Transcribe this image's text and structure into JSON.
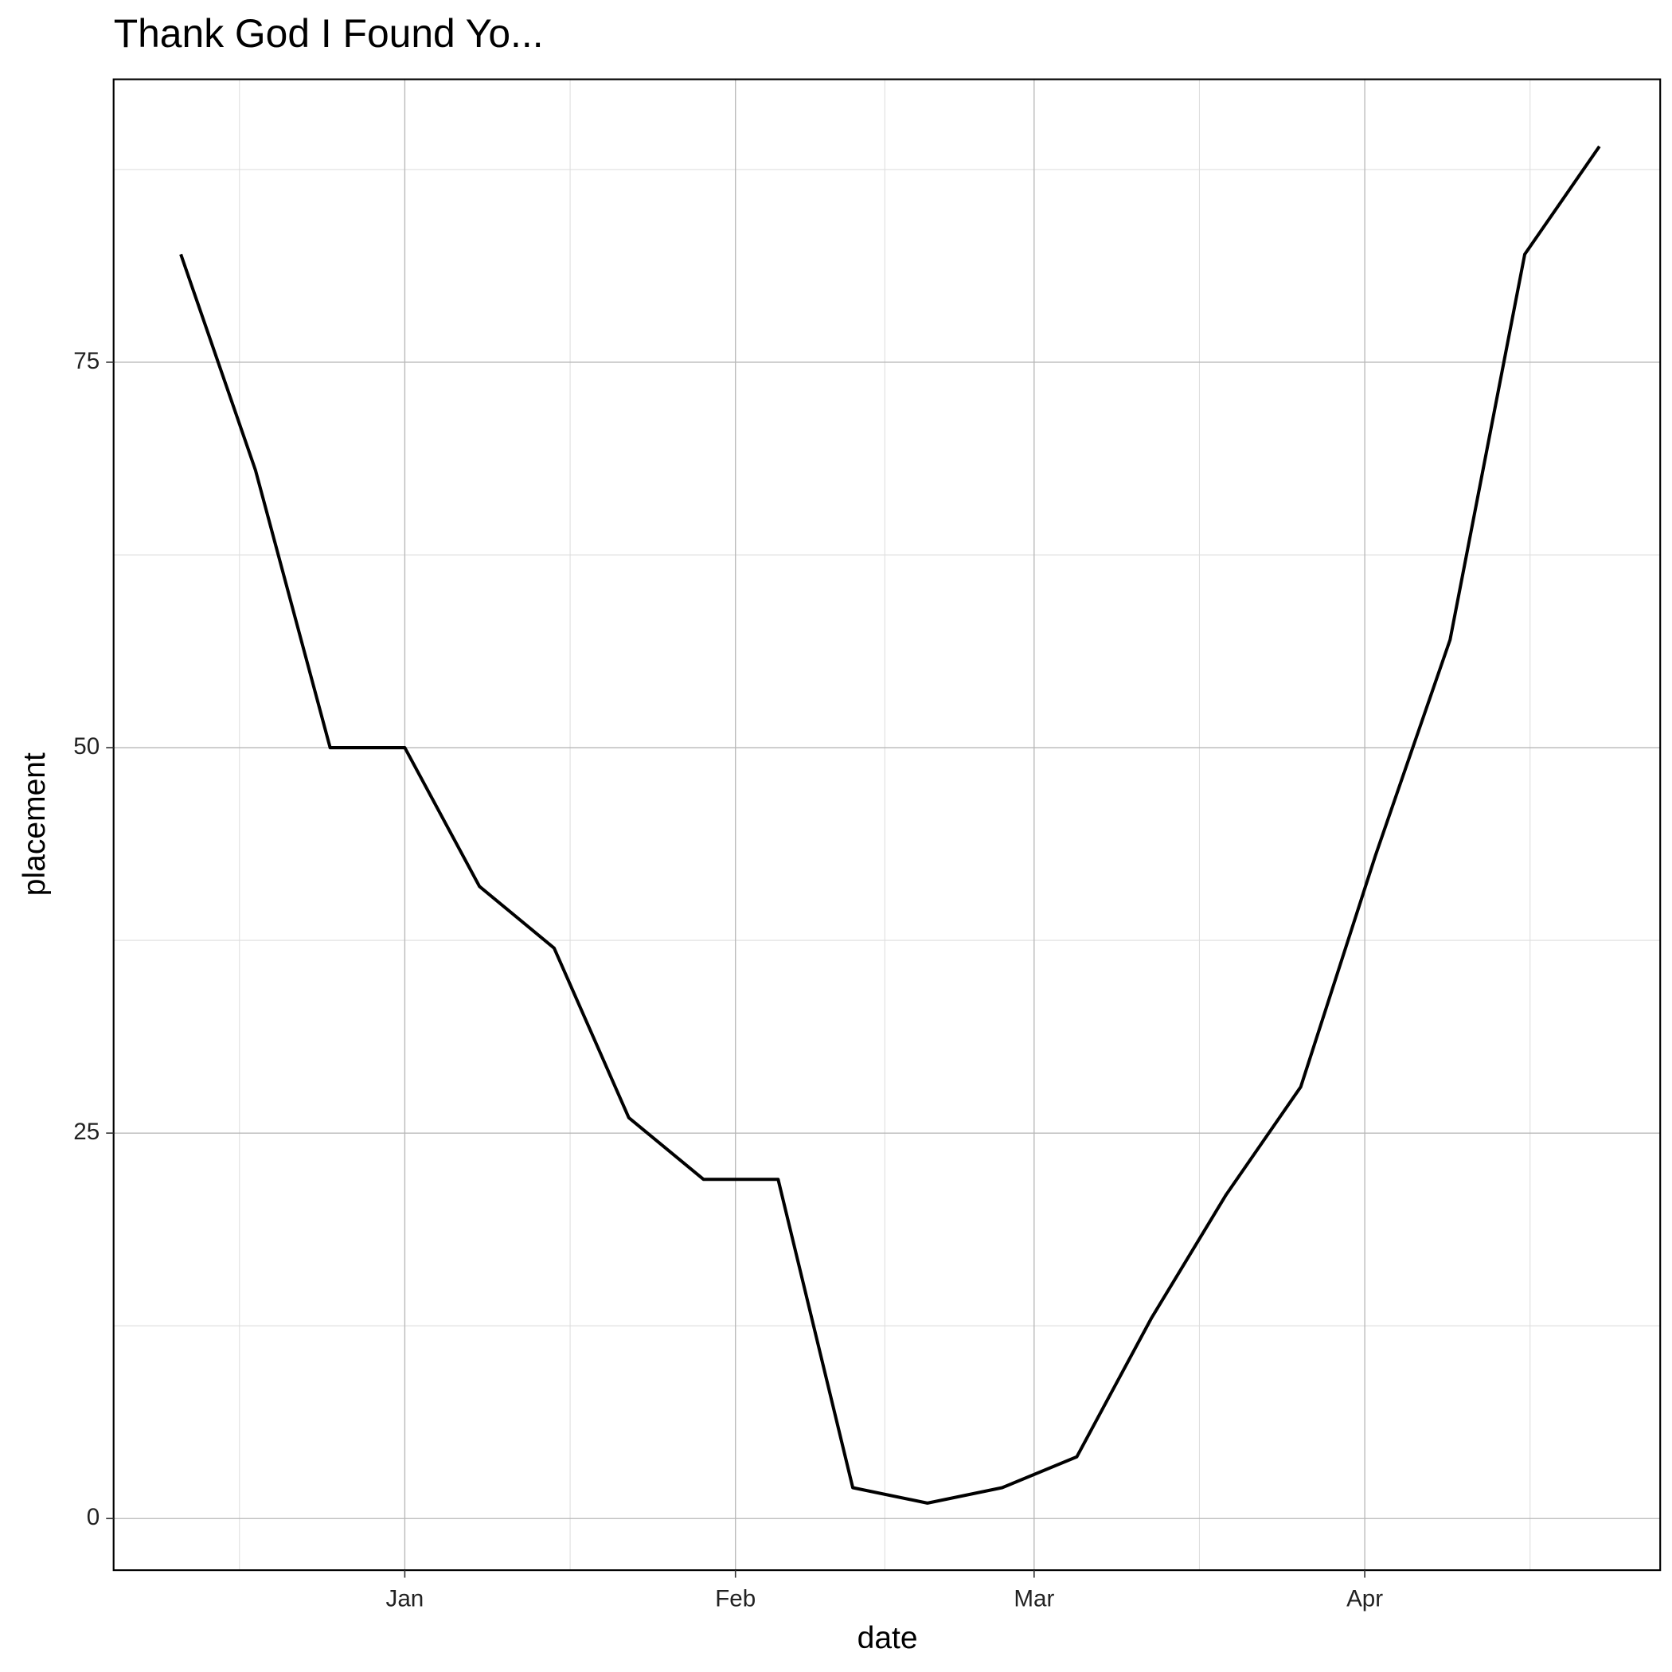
{
  "chart_data": {
    "type": "line",
    "title": "Thank God I Found Yo...",
    "x_label": "date",
    "y_label": "placement",
    "x": [
      -21,
      -14,
      -7,
      0,
      7,
      14,
      21,
      28,
      35,
      42,
      49,
      56,
      63,
      70,
      77,
      84,
      91,
      98,
      105,
      112
    ],
    "series": [
      {
        "name": "placement",
        "color": "#000000",
        "values": [
          82,
          68,
          50,
          50,
          41,
          37,
          26,
          22,
          22,
          2,
          1,
          2,
          4,
          13,
          21,
          28,
          43,
          57,
          82,
          89
        ]
      }
    ],
    "xlim": [
      -27.3,
      117.7
    ],
    "ylim": [
      -3.35,
      93.35
    ],
    "xticks": [
      {
        "value": 0,
        "label": "Jan"
      },
      {
        "value": 31,
        "label": "Feb"
      },
      {
        "value": 59,
        "label": "Mar"
      },
      {
        "value": 90,
        "label": "Apr"
      }
    ],
    "yticks": [
      0,
      25,
      50,
      75
    ],
    "grid": true
  }
}
